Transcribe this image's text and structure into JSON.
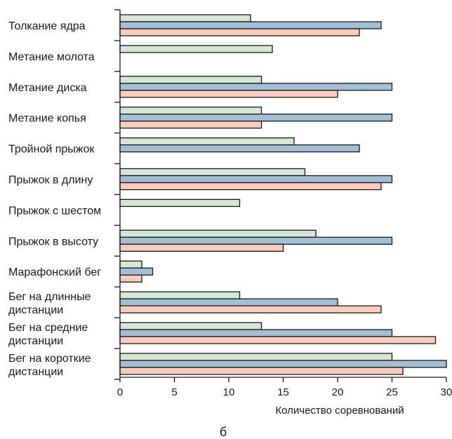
{
  "chart_data": {
    "type": "bar",
    "orientation": "horizontal",
    "categories": [
      "Толкание ядра",
      "Метание молота",
      "Метание диска",
      "Метание копья",
      "Тройной прыжок",
      "Прыжок в длину",
      "Прыжок с шестом",
      "Прыжок в высоту",
      "Марафонский бег",
      "Бег на длинные дистанции",
      "Бег на средние дистанции",
      "Бег на короткие дистанции"
    ],
    "category_lines": [
      [
        "Толкание ядра"
      ],
      [
        "Метание молота"
      ],
      [
        "Метание диска"
      ],
      [
        "Метание копья"
      ],
      [
        "Тройной прыжок"
      ],
      [
        "Прыжок в длину"
      ],
      [
        "Прыжок с шестом"
      ],
      [
        "Прыжок в высоту"
      ],
      [
        "Марафонский бег"
      ],
      [
        "Бег на длинные",
        "дистанции"
      ],
      [
        "Бег на средние",
        "дистанции"
      ],
      [
        "Бег на короткие",
        "дистанции"
      ]
    ],
    "series": [
      {
        "color": "#d5e8d4",
        "values": [
          12,
          14,
          13,
          13,
          16,
          17,
          11,
          18,
          2,
          11,
          13,
          25
        ]
      },
      {
        "color": "#a3bfd4",
        "values": [
          24,
          null,
          25,
          25,
          22,
          25,
          null,
          25,
          3,
          20,
          25,
          30
        ]
      },
      {
        "color": "#f9ccbd",
        "values": [
          22,
          null,
          20,
          13,
          null,
          24,
          null,
          15,
          2,
          24,
          29,
          26
        ]
      }
    ],
    "xlim": [
      0,
      30
    ],
    "xticks": [
      0,
      5,
      10,
      15,
      20,
      25,
      30
    ],
    "xlabel": "Количество соревнований",
    "ylabel": "",
    "title": "",
    "grid": false,
    "legend": "none"
  },
  "figure_label": "б"
}
